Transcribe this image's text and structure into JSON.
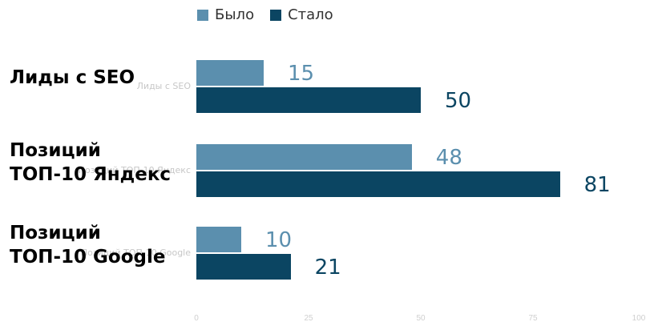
{
  "chart_data": {
    "type": "bar",
    "orientation": "horizontal",
    "categories": [
      "Лиды с SEO",
      "Позиций\nТОП-10 Яндекс",
      "Позиций\nТОП-10 Google"
    ],
    "series": [
      {
        "name": "Было",
        "values": [
          15,
          48,
          10
        ],
        "color": "#5b8fae"
      },
      {
        "name": "Стало",
        "values": [
          50,
          81,
          21
        ],
        "color": "#0b4562"
      }
    ],
    "xlim": [
      0,
      100
    ],
    "x_ticks": [
      0,
      25,
      50,
      75,
      100
    ],
    "legend_position": "top",
    "grid": false
  }
}
